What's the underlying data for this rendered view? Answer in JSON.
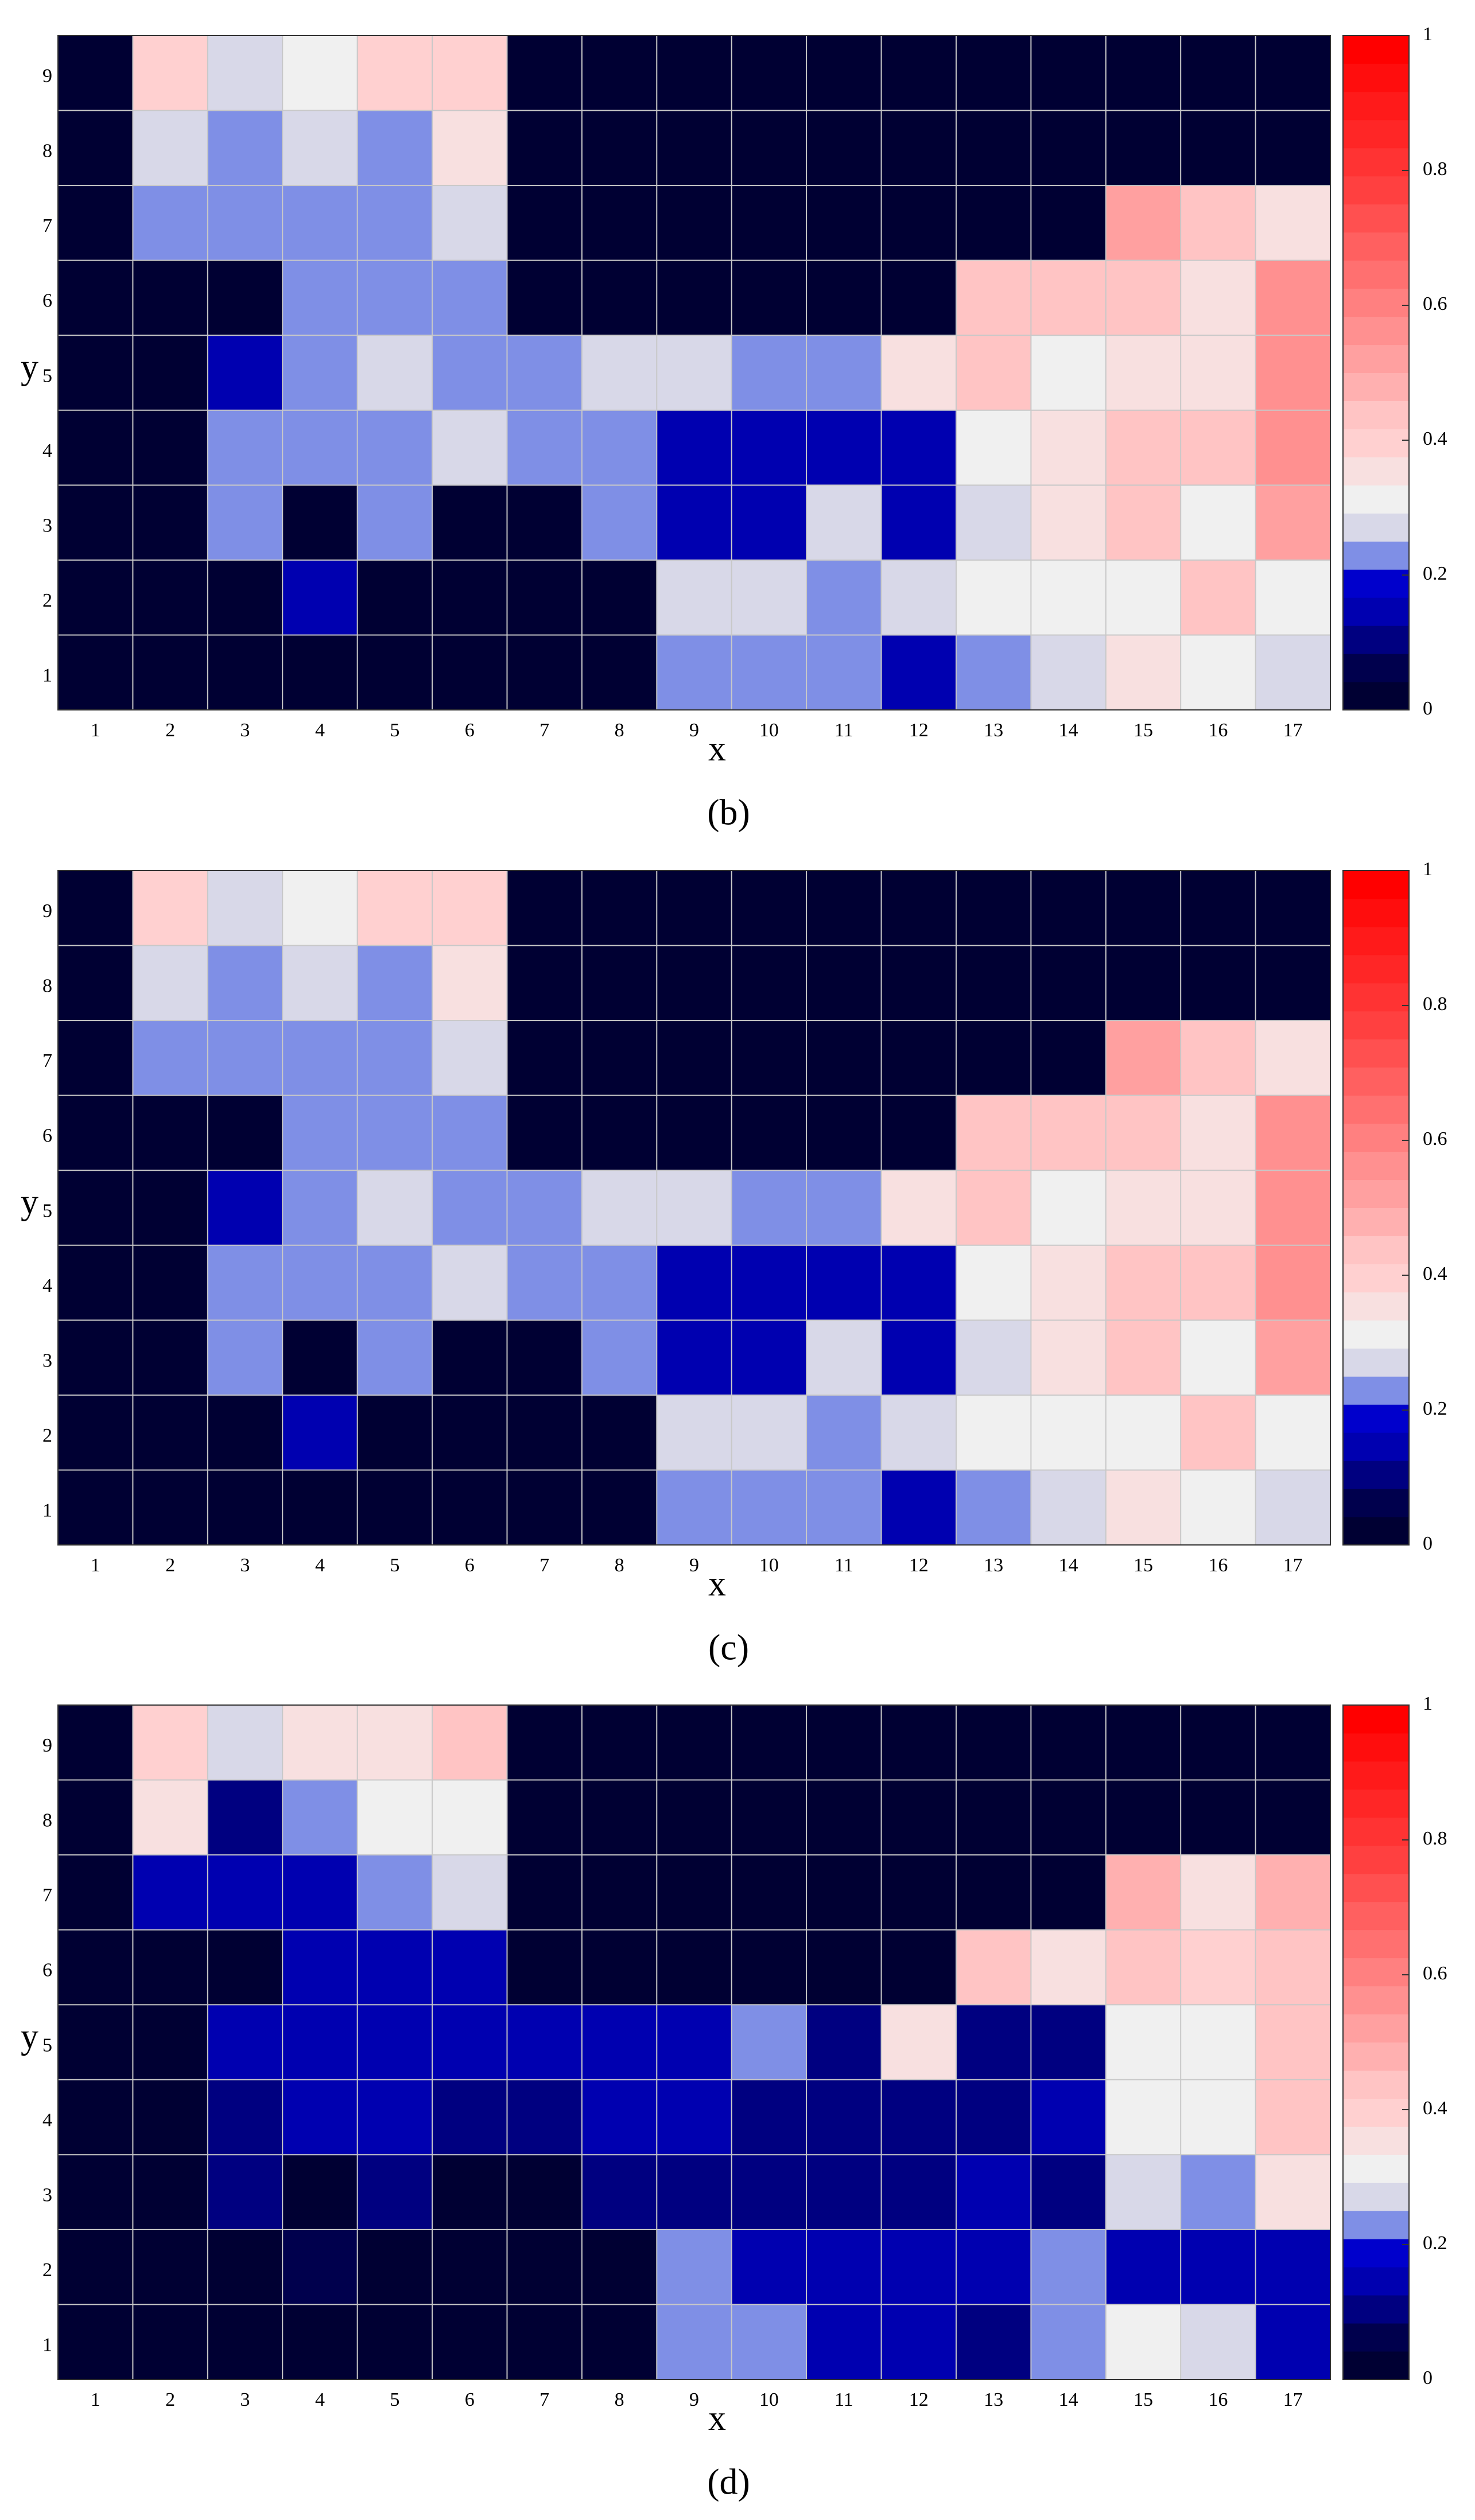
{
  "chart_data": [
    {
      "type": "heatmap",
      "caption": "(b)",
      "x_label": "x",
      "y_label": "y",
      "x": [
        1,
        2,
        3,
        4,
        5,
        6,
        7,
        8,
        9,
        10,
        11,
        12,
        13,
        14,
        15,
        16,
        17
      ],
      "y": [
        1,
        2,
        3,
        4,
        5,
        6,
        7,
        8,
        9
      ],
      "xlim": [
        0.5,
        17.5
      ],
      "ylim": [
        0.5,
        9.5
      ],
      "values": [
        [
          0.02,
          0.02,
          0.02,
          0.02,
          0.02,
          0.02,
          0.02,
          0.02,
          0.23,
          0.23,
          0.23,
          0.15,
          0.23,
          0.27,
          0.36,
          0.31,
          0.27
        ],
        [
          0.02,
          0.02,
          0.02,
          0.14,
          0.02,
          0.02,
          0.02,
          0.02,
          0.27,
          0.27,
          0.23,
          0.27,
          0.31,
          0.31,
          0.31,
          0.42,
          0.31
        ],
        [
          0.02,
          0.02,
          0.23,
          0.02,
          0.23,
          0.02,
          0.02,
          0.23,
          0.15,
          0.15,
          0.27,
          0.15,
          0.27,
          0.37,
          0.42,
          0.31,
          0.52
        ],
        [
          0.02,
          0.02,
          0.23,
          0.23,
          0.23,
          0.27,
          0.23,
          0.23,
          0.14,
          0.15,
          0.14,
          0.15,
          0.31,
          0.37,
          0.42,
          0.43,
          0.56
        ],
        [
          0.02,
          0.02,
          0.16,
          0.23,
          0.27,
          0.23,
          0.23,
          0.27,
          0.27,
          0.23,
          0.23,
          0.36,
          0.42,
          0.31,
          0.37,
          0.37,
          0.56
        ],
        [
          0.02,
          0.02,
          0.02,
          0.23,
          0.23,
          0.23,
          0.02,
          0.02,
          0.02,
          0.02,
          0.02,
          0.02,
          0.42,
          0.42,
          0.43,
          0.37,
          0.58
        ],
        [
          0.02,
          0.23,
          0.23,
          0.23,
          0.23,
          0.27,
          0.02,
          0.02,
          0.02,
          0.02,
          0.02,
          0.02,
          0.02,
          0.02,
          0.52,
          0.43,
          0.37
        ],
        [
          0.02,
          0.27,
          0.23,
          0.27,
          0.23,
          0.35,
          0.02,
          0.02,
          0.02,
          0.02,
          0.02,
          0.02,
          0.02,
          0.02,
          0.02,
          0.02,
          0.02
        ],
        [
          0.02,
          0.4,
          0.27,
          0.31,
          0.4,
          0.4,
          0.02,
          0.02,
          0.02,
          0.02,
          0.02,
          0.02,
          0.02,
          0.02,
          0.02,
          0.02,
          0.02
        ]
      ],
      "zlim": [
        0,
        1
      ],
      "zticks": [
        0,
        0.2,
        0.4,
        0.6,
        0.8,
        1
      ],
      "colormap": [
        "#000033",
        "#00004d",
        "#000080",
        "#0000b0",
        "#0000cc",
        "#7f8fe6",
        "#d8d8e8",
        "#f0f0f0",
        "#f8e0e0",
        "#ffd0d0",
        "#ffc4c4",
        "#ffb0b0",
        "#ffa0a0",
        "#ff9090",
        "#ff8080",
        "#ff7070",
        "#ff6060",
        "#ff5050",
        "#ff4040",
        "#ff3333",
        "#ff2626",
        "#ff1a1a",
        "#ff0d0d",
        "#ff0000"
      ]
    },
    {
      "type": "heatmap",
      "caption": "(c)",
      "x_label": "x",
      "y_label": "y",
      "x": [
        1,
        2,
        3,
        4,
        5,
        6,
        7,
        8,
        9,
        10,
        11,
        12,
        13,
        14,
        15,
        16,
        17
      ],
      "y": [
        1,
        2,
        3,
        4,
        5,
        6,
        7,
        8,
        9
      ],
      "xlim": [
        0.5,
        17.5
      ],
      "ylim": [
        0.5,
        9.5
      ],
      "values": [
        [
          0.02,
          0.02,
          0.02,
          0.02,
          0.02,
          0.02,
          0.02,
          0.02,
          0.23,
          0.23,
          0.23,
          0.15,
          0.23,
          0.27,
          0.36,
          0.31,
          0.27
        ],
        [
          0.02,
          0.02,
          0.02,
          0.14,
          0.02,
          0.02,
          0.02,
          0.02,
          0.27,
          0.27,
          0.23,
          0.27,
          0.31,
          0.31,
          0.31,
          0.42,
          0.31
        ],
        [
          0.02,
          0.02,
          0.23,
          0.02,
          0.23,
          0.02,
          0.02,
          0.23,
          0.15,
          0.15,
          0.27,
          0.15,
          0.27,
          0.37,
          0.42,
          0.31,
          0.52
        ],
        [
          0.02,
          0.02,
          0.23,
          0.23,
          0.23,
          0.27,
          0.23,
          0.23,
          0.14,
          0.15,
          0.14,
          0.15,
          0.31,
          0.37,
          0.42,
          0.43,
          0.56
        ],
        [
          0.02,
          0.02,
          0.16,
          0.23,
          0.27,
          0.23,
          0.23,
          0.27,
          0.27,
          0.23,
          0.23,
          0.36,
          0.42,
          0.31,
          0.37,
          0.37,
          0.56
        ],
        [
          0.02,
          0.02,
          0.02,
          0.23,
          0.23,
          0.23,
          0.02,
          0.02,
          0.02,
          0.02,
          0.02,
          0.02,
          0.42,
          0.42,
          0.43,
          0.37,
          0.58
        ],
        [
          0.02,
          0.23,
          0.23,
          0.23,
          0.23,
          0.27,
          0.02,
          0.02,
          0.02,
          0.02,
          0.02,
          0.02,
          0.02,
          0.02,
          0.52,
          0.43,
          0.37
        ],
        [
          0.02,
          0.27,
          0.23,
          0.27,
          0.23,
          0.35,
          0.02,
          0.02,
          0.02,
          0.02,
          0.02,
          0.02,
          0.02,
          0.02,
          0.02,
          0.02,
          0.02
        ],
        [
          0.02,
          0.4,
          0.27,
          0.31,
          0.4,
          0.4,
          0.02,
          0.02,
          0.02,
          0.02,
          0.02,
          0.02,
          0.02,
          0.02,
          0.02,
          0.02,
          0.02
        ]
      ],
      "zlim": [
        0,
        1
      ],
      "zticks": [
        0,
        0.2,
        0.4,
        0.6,
        0.8,
        1
      ],
      "colormap": [
        "#000033",
        "#00004d",
        "#000080",
        "#0000b0",
        "#0000cc",
        "#7f8fe6",
        "#d8d8e8",
        "#f0f0f0",
        "#f8e0e0",
        "#ffd0d0",
        "#ffc4c4",
        "#ffb0b0",
        "#ffa0a0",
        "#ff9090",
        "#ff8080",
        "#ff7070",
        "#ff6060",
        "#ff5050",
        "#ff4040",
        "#ff3333",
        "#ff2626",
        "#ff1a1a",
        "#ff0d0d",
        "#ff0000"
      ]
    },
    {
      "type": "heatmap",
      "caption": "(d)",
      "x_label": "x",
      "y_label": "y",
      "x": [
        1,
        2,
        3,
        4,
        5,
        6,
        7,
        8,
        9,
        10,
        11,
        12,
        13,
        14,
        15,
        16,
        17
      ],
      "y": [
        1,
        2,
        3,
        4,
        5,
        6,
        7,
        8,
        9
      ],
      "xlim": [
        0.5,
        17.5
      ],
      "ylim": [
        0.5,
        9.5
      ],
      "values": [
        [
          0.02,
          0.02,
          0.02,
          0.02,
          0.02,
          0.02,
          0.02,
          0.02,
          0.23,
          0.23,
          0.14,
          0.14,
          0.1,
          0.23,
          0.31,
          0.27,
          0.14
        ],
        [
          0.02,
          0.02,
          0.02,
          0.08,
          0.02,
          0.02,
          0.02,
          0.02,
          0.23,
          0.14,
          0.14,
          0.14,
          0.14,
          0.23,
          0.14,
          0.14,
          0.14
        ],
        [
          0.02,
          0.02,
          0.1,
          0.02,
          0.12,
          0.02,
          0.02,
          0.12,
          0.11,
          0.11,
          0.11,
          0.12,
          0.13,
          0.1,
          0.27,
          0.23,
          0.37
        ],
        [
          0.02,
          0.03,
          0.12,
          0.13,
          0.13,
          0.12,
          0.12,
          0.13,
          0.13,
          0.12,
          0.11,
          0.1,
          0.12,
          0.14,
          0.31,
          0.31,
          0.42
        ],
        [
          0.02,
          0.03,
          0.14,
          0.13,
          0.13,
          0.14,
          0.13,
          0.13,
          0.14,
          0.23,
          0.1,
          0.37,
          0.1,
          0.12,
          0.31,
          0.31,
          0.44
        ],
        [
          0.02,
          0.02,
          0.02,
          0.13,
          0.13,
          0.13,
          0.02,
          0.02,
          0.02,
          0.02,
          0.02,
          0.02,
          0.42,
          0.37,
          0.43,
          0.38,
          0.43
        ],
        [
          0.02,
          0.15,
          0.14,
          0.14,
          0.23,
          0.27,
          0.02,
          0.02,
          0.02,
          0.02,
          0.02,
          0.02,
          0.02,
          0.02,
          0.48,
          0.37,
          0.46
        ],
        [
          0.02,
          0.37,
          0.12,
          0.23,
          0.31,
          0.31,
          0.02,
          0.02,
          0.02,
          0.02,
          0.02,
          0.02,
          0.02,
          0.02,
          0.02,
          0.02,
          0.02
        ],
        [
          0.02,
          0.4,
          0.27,
          0.37,
          0.37,
          0.42,
          0.02,
          0.02,
          0.02,
          0.02,
          0.02,
          0.02,
          0.02,
          0.02,
          0.02,
          0.02,
          0.02
        ]
      ],
      "zlim": [
        0,
        1
      ],
      "zticks": [
        0,
        0.2,
        0.4,
        0.6,
        0.8,
        1
      ],
      "colormap": [
        "#000033",
        "#00004d",
        "#000080",
        "#0000b0",
        "#0000cc",
        "#7f8fe6",
        "#d8d8e8",
        "#f0f0f0",
        "#f8e0e0",
        "#ffd0d0",
        "#ffc4c4",
        "#ffb0b0",
        "#ffa0a0",
        "#ff9090",
        "#ff8080",
        "#ff7070",
        "#ff6060",
        "#ff5050",
        "#ff4040",
        "#ff3333",
        "#ff2626",
        "#ff1a1a",
        "#ff0d0d",
        "#ff0000"
      ]
    }
  ]
}
